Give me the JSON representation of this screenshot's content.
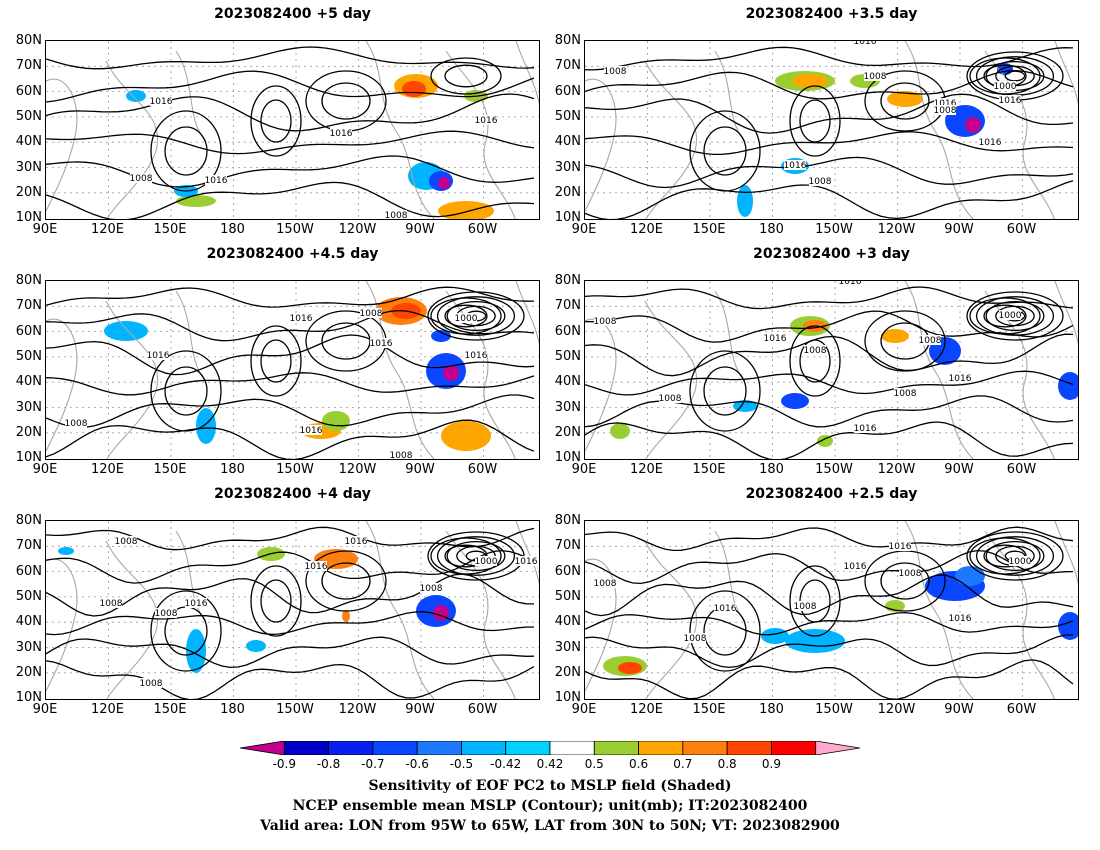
{
  "panels": [
    {
      "title": "2023082400 +5 day"
    },
    {
      "title": "2023082400 +3.5 day"
    },
    {
      "title": "2023082400 +4.5 day"
    },
    {
      "title": "2023082400 +3 day"
    },
    {
      "title": "2023082400 +4 day"
    },
    {
      "title": "2023082400 +2.5 day"
    }
  ],
  "lat_ticks": [
    "80N",
    "70N",
    "60N",
    "50N",
    "40N",
    "30N",
    "20N",
    "10N"
  ],
  "lon_ticks": [
    "90E",
    "120E",
    "150E",
    "180",
    "150W",
    "120W",
    "90W",
    "60W"
  ],
  "contour_labels": {
    "p0": [
      "1016",
      "1016",
      "1008",
      "1016",
      "1016",
      "1008"
    ],
    "p1": [
      "1016",
      "1008",
      "1008",
      "1016",
      "1016",
      "1008",
      "1000",
      "1016",
      "1016",
      "1008"
    ],
    "p2": [
      "1016",
      "1008",
      "1016",
      "1000",
      "1016",
      "1016",
      "1008",
      "1016",
      "1008"
    ],
    "p3": [
      "1016",
      "1008",
      "1016",
      "1008",
      "1000",
      "1008",
      "1016",
      "1016",
      "1008",
      "1008"
    ],
    "p4": [
      "1008",
      "1016",
      "1008",
      "1000",
      "1016",
      "1016",
      "1016",
      "1008",
      "1008",
      "1008"
    ],
    "p5": [
      "1016",
      "1008",
      "1016",
      "1000",
      "1008",
      "1016",
      "1008",
      "1016",
      "1008"
    ]
  },
  "colorbar": {
    "labels": [
      "-0.9",
      "-0.8",
      "-0.7",
      "-0.6",
      "-0.5",
      "-0.42",
      "0.42",
      "0.5",
      "0.6",
      "0.7",
      "0.8",
      "0.9"
    ],
    "colors": [
      "#c4008c",
      "#0000c8",
      "#0a1ef0",
      "#0a46ff",
      "#1e78ff",
      "#00b4ff",
      "#00d2ff",
      "#ffffff",
      "#9acd32",
      "#ffa500",
      "#ff7f0e",
      "#ff4500",
      "#ff0000",
      "#ffaacc"
    ]
  },
  "captions": [
    "Sensitivity of EOF PC2 to MSLP field (Shaded)",
    "NCEP ensemble mean MSLP (Contour); unit(mb); IT:2023082400",
    "Valid area: LON from 95W to 65W, LAT from 30N to 50N; VT: 2023082900"
  ]
}
